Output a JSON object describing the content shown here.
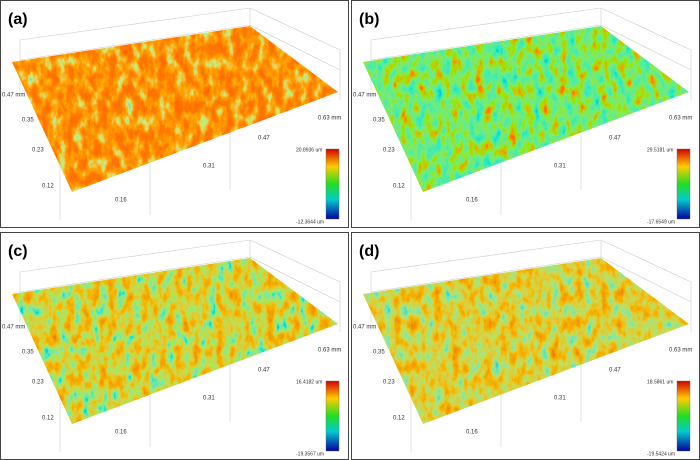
{
  "panels": [
    {
      "label": "(a)",
      "y_axis_labels": [
        "0.47 mm",
        "0.35",
        "0.23",
        "0.12"
      ],
      "x_axis_labels": [
        "0.16",
        "0.31",
        "0.47",
        "0.63 mm"
      ],
      "colorbar_max": "20.8936 um",
      "colorbar_min": "-12.3644 um"
    },
    {
      "label": "(b)",
      "y_axis_labels": [
        "0.47 mm",
        "0.35",
        "0.23",
        "0.12"
      ],
      "x_axis_labels": [
        "0.16",
        "0.31",
        "0.47",
        "0.63 mm"
      ],
      "colorbar_max": "29.5181 um",
      "colorbar_min": "-17.6549 um"
    },
    {
      "label": "(c)",
      "y_axis_labels": [
        "0.47 mm",
        "0.35",
        "0.23",
        "0.12"
      ],
      "x_axis_labels": [
        "0.16",
        "0.31",
        "0.47",
        "0.63 mm"
      ],
      "colorbar_max": "16.4182 um",
      "colorbar_min": "-19.3567 um"
    },
    {
      "label": "(d)",
      "y_axis_labels": [
        "0.47 mm",
        "0.35",
        "0.23",
        "0.12"
      ],
      "x_axis_labels": [
        "0.16",
        "0.31",
        "0.47",
        "0.63 mm"
      ],
      "colorbar_max": "18.5861 um",
      "colorbar_min": "-19.5424 um"
    }
  ]
}
